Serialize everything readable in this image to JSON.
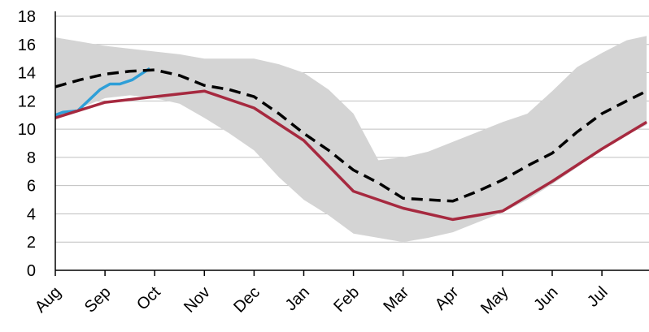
{
  "chart_data": {
    "type": "line",
    "categories": [
      "Aug",
      "Sep",
      "Oct",
      "Nov",
      "Dec",
      "Jan",
      "Feb",
      "Mar",
      "Apr",
      "May",
      "Jun",
      "Jul"
    ],
    "ylim": [
      0,
      18
    ],
    "yticks": [
      "0",
      "2",
      "4",
      "6",
      "8",
      "10",
      "12",
      "14",
      "16",
      "18"
    ],
    "grid": true,
    "legend": "none",
    "range_band": {
      "x": [
        0,
        0.5,
        1,
        1.5,
        2,
        2.5,
        3,
        3.5,
        4,
        4.5,
        5,
        5.5,
        6,
        6.5,
        7,
        7.5,
        8,
        8.5,
        9,
        9.5,
        10,
        10.5,
        11,
        11.5,
        11.9
      ],
      "upper": [
        16.5,
        16.2,
        15.9,
        15.7,
        15.5,
        15.3,
        15.0,
        15.0,
        15.0,
        14.6,
        14.0,
        12.8,
        11.1,
        7.8,
        8.0,
        8.4,
        9.1,
        9.8,
        10.5,
        11.1,
        12.7,
        14.4,
        15.4,
        16.3,
        16.6
      ],
      "lower": [
        10.8,
        11.5,
        12.2,
        12.4,
        12.2,
        11.8,
        10.8,
        9.7,
        8.5,
        6.6,
        5.0,
        3.9,
        2.6,
        2.3,
        2.0,
        2.3,
        2.7,
        3.4,
        4.1,
        5.0,
        6.1,
        7.3,
        8.6,
        9.6,
        10.3
      ]
    },
    "series": [
      {
        "color": "#2E9FD8",
        "dash": false,
        "x": [
          0,
          0.15,
          0.45,
          0.9,
          1.1,
          1.3,
          1.55,
          1.9
        ],
        "values": [
          11.0,
          11.2,
          11.3,
          12.8,
          13.2,
          13.2,
          13.5,
          14.3
        ]
      },
      {
        "color": "#000000",
        "dash": true,
        "x": [
          0,
          0.5,
          1,
          1.5,
          2,
          2.5,
          3,
          3.5,
          4,
          4.5,
          5,
          5.5,
          6,
          6.5,
          7,
          7.5,
          8,
          8.5,
          9,
          9.5,
          10,
          10.5,
          11,
          11.5,
          11.9
        ],
        "values": [
          13.0,
          13.5,
          13.9,
          14.1,
          14.2,
          13.8,
          13.1,
          12.8,
          12.3,
          11.1,
          9.7,
          8.5,
          7.1,
          6.2,
          5.1,
          5.0,
          4.9,
          5.6,
          6.4,
          7.4,
          8.3,
          9.8,
          11.1,
          12.0,
          12.7
        ]
      },
      {
        "color": "#A6293F",
        "dash": false,
        "x": [
          0,
          1,
          2,
          3,
          4,
          5,
          6,
          7,
          8,
          9,
          10,
          11,
          11.9
        ],
        "values": [
          10.8,
          11.9,
          12.3,
          12.7,
          11.5,
          9.2,
          5.6,
          4.4,
          3.6,
          4.2,
          6.3,
          8.6,
          10.5
        ]
      }
    ]
  }
}
